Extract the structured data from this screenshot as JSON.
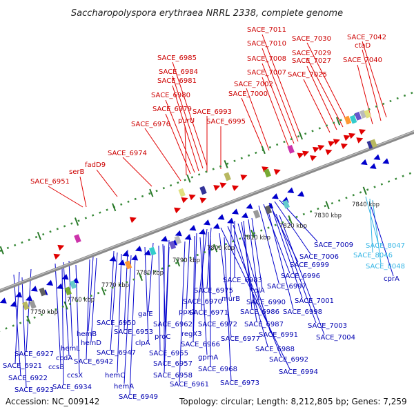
{
  "title": "Saccharopolyspora erythraea NRRL 2338, complete genome",
  "footer": {
    "accession": "Accession: NC_009142",
    "summary": "Topology: circular; Length: 8,212,805 bp; Genes: 7,259"
  },
  "colors": {
    "forward": "#e00000",
    "reverse": "#0000cc",
    "highlight": "#33b5e5",
    "backbone": "#8a8a8a",
    "dots": "#3a8a3a"
  },
  "kbp_ticks": [
    "7750 kbp",
    "7760 kbp",
    "7770 kbp",
    "7780 kbp",
    "7790 kbp",
    "7800 kbp",
    "7810 kbp",
    "7820 kbp",
    "7830 kbp",
    "7840 kbp"
  ],
  "top_labels": [
    "SACE_7011",
    "SACE_7010",
    "SACE_7008",
    "SACE_7007",
    "SACE_7002",
    "SACE_7000",
    "SACE_7030",
    "SACE_7029",
    "SACE_7027",
    "SACE_7025",
    "SACE_7042",
    "ctaD",
    "SACE_7040",
    "SACE_6985",
    "SACE_6984",
    "SACE_6981",
    "SACE_6980",
    "SACE_6979",
    "purU",
    "SACE_6993",
    "SACE_6995",
    "SACE_6976",
    "SACE_6974",
    "fadD9",
    "serB",
    "SACE_6951"
  ],
  "bottom_labels": [
    "SACE_7009",
    "SACE_7006",
    "SACE_6999",
    "SACE_6996",
    "SACE_6997",
    "SACE_7001",
    "SACE_6998",
    "SACE_7003",
    "SACE_7004",
    "SACE_6983",
    "murB",
    "SACE_6975",
    "SACE_6970",
    "SACE_6971",
    "SACE_6972",
    "SACE_6977",
    "SACE_6966",
    "SACE_6968",
    "SACE_6973",
    "ppx1",
    "regX3",
    "gpmA",
    "SACE_6962",
    "SACE_6961",
    "galE",
    "proC",
    "SACE_6955",
    "SACE_6957",
    "SACE_6958",
    "clpA",
    "SACE_6953",
    "SACE_6950",
    "SACE_6947",
    "hemC",
    "hemA",
    "SACE_6949",
    "hemB",
    "hemD",
    "SACE_6942",
    "hemL",
    "ccdA",
    "ccsB",
    "ccsX",
    "SACE_6934",
    "SACE_6927",
    "SACE_6921",
    "SACE_6922",
    "SACE_6923",
    "tolA",
    "SACE_6990",
    "SACE_6986",
    "SACE_6987",
    "SACE_6991",
    "SACE_6988",
    "SACE_6992",
    "SACE_6994"
  ],
  "cyan_labels": [
    "SACE_8047",
    "SACE_8046",
    "SACE_8048",
    "cprA"
  ]
}
